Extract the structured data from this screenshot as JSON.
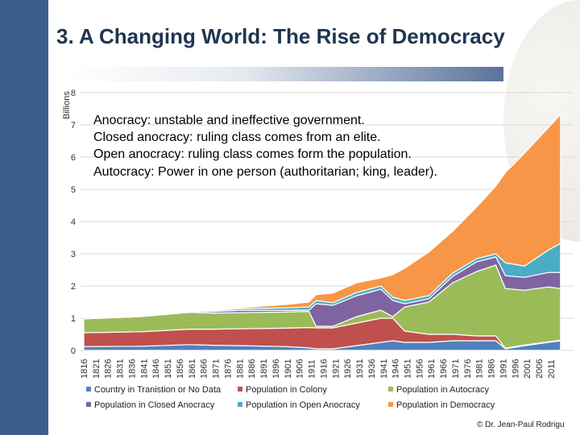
{
  "slide": {
    "title": "3. A Changing World: The Rise of Democracy",
    "copyright": "© Dr. Jean-Paul Rodrigu"
  },
  "notes": [
    "Anocracy: unstable and ineffective government.",
    "Closed anocracy: ruling class comes from an elite.",
    "Open anocracy: ruling class comes form the population.",
    "Autocracy: Power in one person (authoritarian; king, leader)."
  ],
  "chart_data": {
    "type": "area",
    "stacked": true,
    "ylabel": "Billions",
    "ylim": [
      0,
      8
    ],
    "yticks": [
      0,
      1,
      2,
      3,
      4,
      5,
      6,
      7,
      8
    ],
    "grid": true,
    "legend": "bottom",
    "xticks": [
      1816,
      1821,
      1826,
      1831,
      1836,
      1841,
      1846,
      1851,
      1856,
      1861,
      1866,
      1871,
      1876,
      1881,
      1886,
      1891,
      1896,
      1901,
      1906,
      1911,
      1916,
      1921,
      1926,
      1931,
      1936,
      1941,
      1946,
      1951,
      1956,
      1961,
      1966,
      1971,
      1976,
      1981,
      1986,
      1991,
      1996,
      2001,
      2006,
      2011
    ],
    "x": [
      1816,
      1840,
      1860,
      1870,
      1880,
      1900,
      1910,
      1913,
      1920,
      1930,
      1940,
      1945,
      1950,
      1960,
      1970,
      1980,
      1988,
      1992,
      2000,
      2010,
      2015
    ],
    "series": [
      {
        "name": "Country in Tranistion or No Data",
        "color": "#4f81bd",
        "values": [
          0.12,
          0.13,
          0.18,
          0.16,
          0.15,
          0.12,
          0.08,
          0.05,
          0.05,
          0.15,
          0.25,
          0.3,
          0.25,
          0.25,
          0.3,
          0.3,
          0.3,
          0.05,
          0.15,
          0.25,
          0.3
        ]
      },
      {
        "name": "Population in Colony",
        "color": "#c0504d",
        "values": [
          0.43,
          0.45,
          0.48,
          0.5,
          0.52,
          0.57,
          0.63,
          0.65,
          0.65,
          0.7,
          0.75,
          0.7,
          0.35,
          0.25,
          0.2,
          0.15,
          0.15,
          0.02,
          0.02,
          0.02,
          0.02
        ]
      },
      {
        "name": "Population in Autocracy",
        "color": "#9bbb59",
        "values": [
          0.43,
          0.47,
          0.52,
          0.5,
          0.5,
          0.5,
          0.5,
          0.05,
          0.05,
          0.2,
          0.25,
          0.05,
          0.75,
          1.0,
          1.6,
          2.0,
          2.2,
          1.85,
          1.7,
          1.7,
          1.6
        ]
      },
      {
        "name": "Population in Closed Anocracy",
        "color": "#8064a2",
        "values": [
          0,
          0,
          0.03,
          0.05,
          0.07,
          0.05,
          0.04,
          0.7,
          0.65,
          0.65,
          0.65,
          0.5,
          0.1,
          0.1,
          0.2,
          0.3,
          0.25,
          0.4,
          0.4,
          0.45,
          0.5
        ]
      },
      {
        "name": "Population in Open Anocracy",
        "color": "#4bacc6",
        "values": [
          0,
          0,
          0,
          0.03,
          0.05,
          0.08,
          0.1,
          0.1,
          0.08,
          0.1,
          0.1,
          0.1,
          0.1,
          0.1,
          0.1,
          0.1,
          0.1,
          0.4,
          0.35,
          0.7,
          0.9
        ]
      },
      {
        "name": "Population in Democracy",
        "color": "#f79646",
        "values": [
          0,
          0,
          0,
          0,
          0.03,
          0.1,
          0.15,
          0.18,
          0.3,
          0.3,
          0.25,
          0.7,
          1.0,
          1.35,
          1.3,
          1.6,
          2.1,
          2.8,
          3.5,
          3.8,
          4.0
        ]
      }
    ]
  }
}
